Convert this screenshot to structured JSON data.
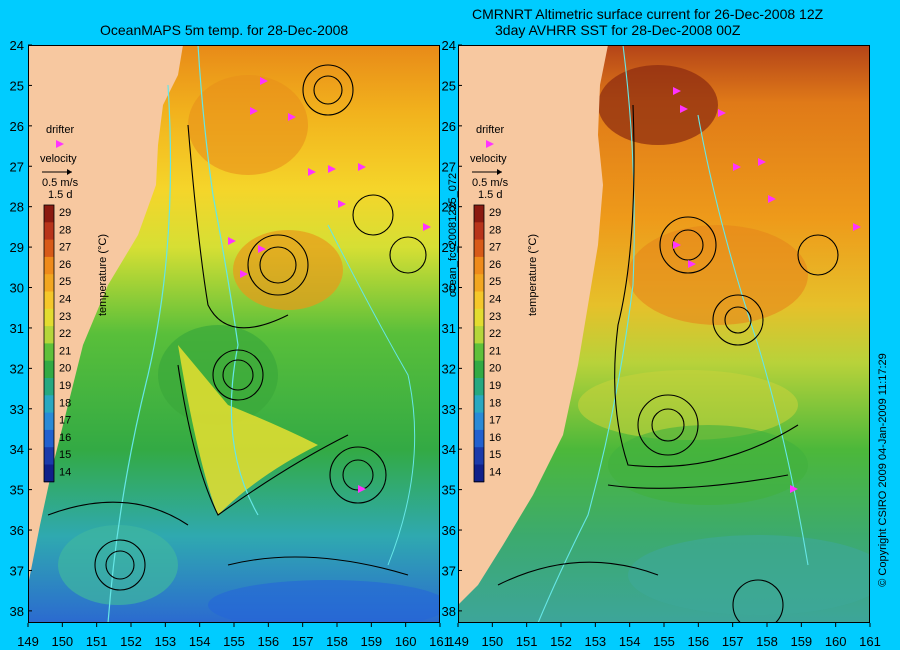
{
  "left_panel": {
    "title": "OceanMAPS 5m temp. for 28-Dec-2008"
  },
  "right_panel": {
    "title_line1": "CMRNRT Altimetric surface current for 26-Dec-2008 12Z",
    "title_line2": "3day AVHRR SST for 28-Dec-2008 00Z",
    "side_label": "ocean_fc_20081225_072"
  },
  "legend": {
    "drifter_label": "drifter",
    "velocity_label": "velocity",
    "speed_label": "0.5 m/s",
    "colorbar_top_label": "1.5 d",
    "colorbar_title": "temperature (°C)",
    "colorbar_ticks": [
      "29",
      "28",
      "27",
      "26",
      "25",
      "24",
      "23",
      "22",
      "21",
      "20",
      "19",
      "18",
      "17",
      "16",
      "15",
      "14"
    ]
  },
  "axes": {
    "lat_labels": [
      "24",
      "25",
      "26",
      "27",
      "28",
      "29",
      "30",
      "31",
      "32",
      "33",
      "34",
      "35",
      "36",
      "37",
      "38"
    ],
    "left_lon_labels": [
      "149",
      "150",
      "151",
      "152",
      "153",
      "154",
      "155",
      "156",
      "157",
      "158",
      "159",
      "160",
      "161"
    ],
    "right_lon_labels": [
      "149",
      "150",
      "151",
      "152",
      "153",
      "154",
      "155",
      "156",
      "157",
      "158",
      "159",
      "160",
      "161"
    ]
  },
  "copyright": "© Copyright CSIRO 2009   04-Jan-2009 11:17:29",
  "colors": {
    "background": "#00ccff",
    "land": "#f7c8a0",
    "drifter": "#ff33ff",
    "contour": "#66e6e6"
  },
  "chart_data": {
    "type": "heatmap",
    "lon_range": [
      149,
      161
    ],
    "lat_range": [
      24,
      38.3
    ],
    "color_scale_range": [
      14,
      29
    ],
    "color_scale_unit": "°C"
  }
}
